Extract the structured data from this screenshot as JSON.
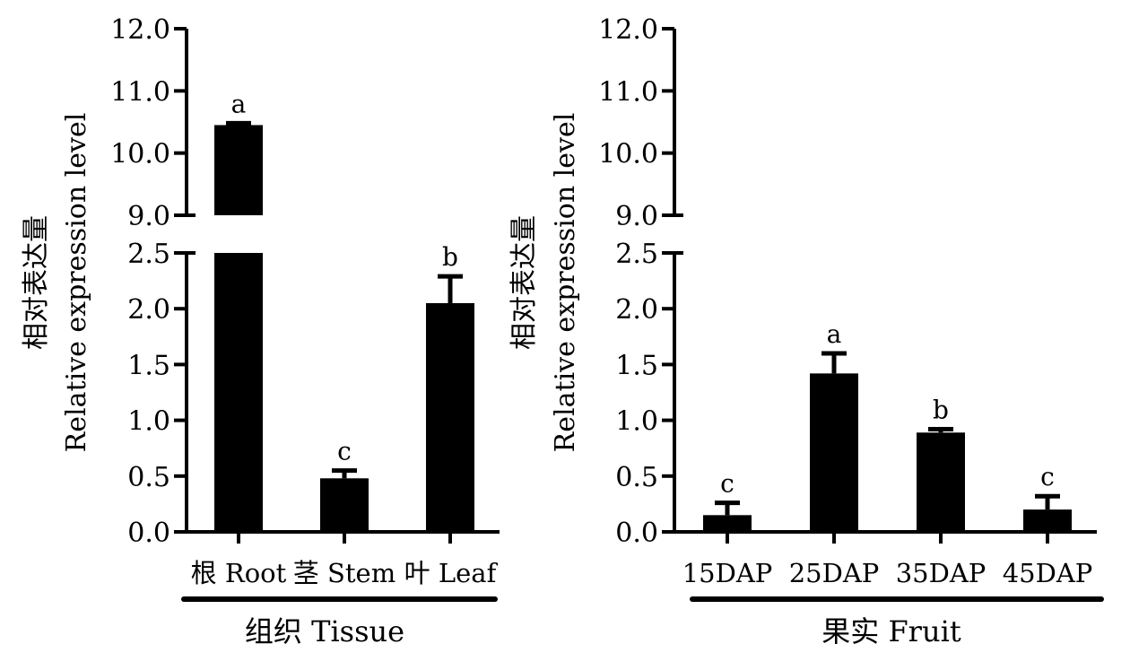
{
  "chart_data": [
    {
      "type": "bar",
      "ylabel_cn": "相对表达量",
      "ylabel_en": "Relative expression level",
      "group_label": "组织 Tissue",
      "categories": [
        "根 Root",
        "茎 Stem",
        "叶 Leaf"
      ],
      "values": [
        10.45,
        0.48,
        2.05
      ],
      "errors": [
        0.03,
        0.07,
        0.24
      ],
      "significance": [
        "a",
        "c",
        "b"
      ],
      "y_segments": [
        {
          "range": [
            0,
            2.5
          ],
          "ticks": [
            "0.0",
            "0.5",
            "1.0",
            "1.5",
            "2.0",
            "2.5"
          ]
        },
        {
          "range": [
            9,
            12
          ],
          "ticks": [
            "9.0",
            "10.0",
            "11.0",
            "12.0"
          ]
        }
      ],
      "bar_color": "#000000"
    },
    {
      "type": "bar",
      "ylabel_cn": "相对表达量",
      "ylabel_en": "Relative expression level",
      "group_label": "果实 Fruit",
      "categories": [
        "15DAP",
        "25DAP",
        "35DAP",
        "45DAP"
      ],
      "values": [
        0.15,
        1.42,
        0.89,
        0.2
      ],
      "errors": [
        0.11,
        0.18,
        0.03,
        0.12
      ],
      "significance": [
        "c",
        "a",
        "b",
        "c"
      ],
      "y_segments": [
        {
          "range": [
            0,
            2.5
          ],
          "ticks": [
            "0.0",
            "0.5",
            "1.0",
            "1.5",
            "2.0",
            "2.5"
          ]
        },
        {
          "range": [
            9,
            12
          ],
          "ticks": [
            "9.0",
            "10.0",
            "11.0",
            "12.0"
          ]
        }
      ],
      "bar_color": "#000000"
    }
  ]
}
